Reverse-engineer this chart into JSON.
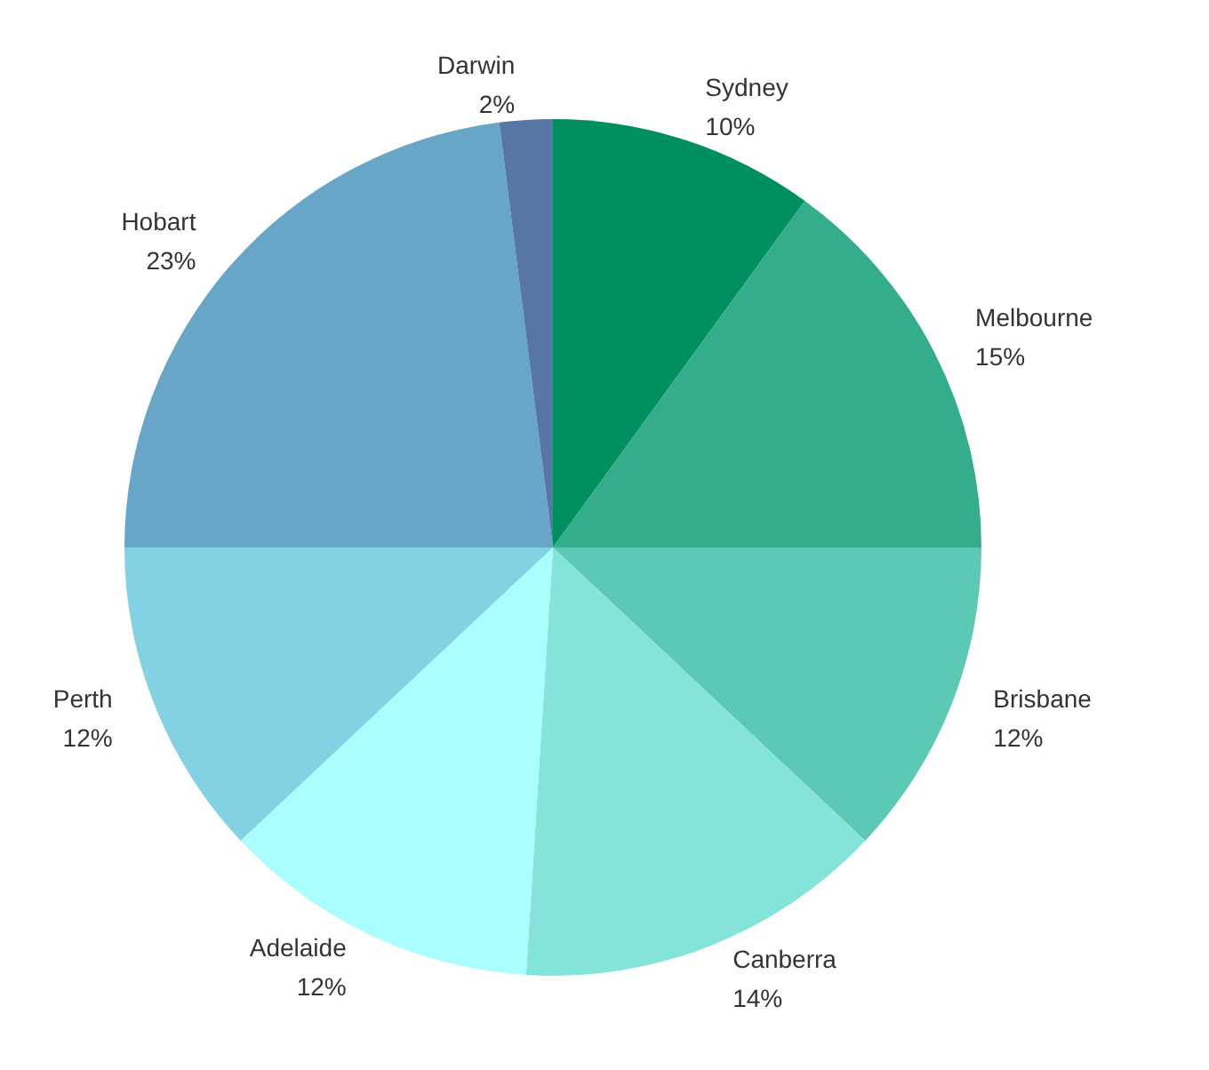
{
  "chart_data": {
    "type": "pie",
    "categories": [
      "Sydney",
      "Melbourne",
      "Brisbane",
      "Canberra",
      "Adelaide",
      "Perth",
      "Hobart",
      "Darwin"
    ],
    "values": [
      10,
      15,
      12,
      14,
      12,
      12,
      23,
      2
    ],
    "value_labels": [
      "10%",
      "15%",
      "12%",
      "14%",
      "12%",
      "12%",
      "23%",
      "2%"
    ],
    "colors": [
      "#00905f",
      "#34ad8c",
      "#5bc9b4",
      "#84e4da",
      "#aafefd",
      "#82d2e4",
      "#68a6c8",
      "#5776a3"
    ]
  }
}
